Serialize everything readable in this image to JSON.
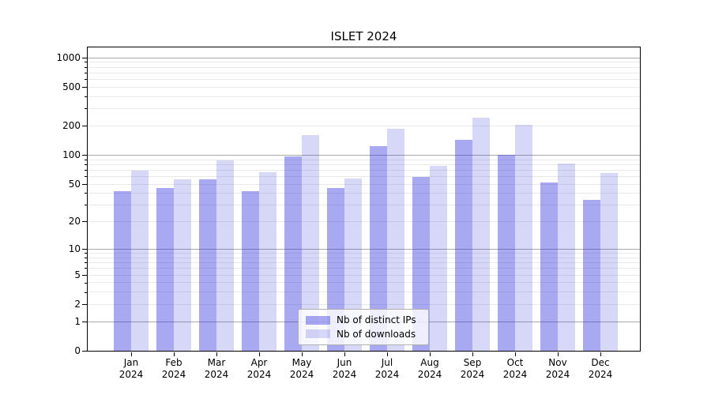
{
  "chart_data": {
    "type": "bar",
    "title": "ISLET 2024",
    "categories": [
      "Jan",
      "Feb",
      "Mar",
      "Apr",
      "May",
      "Jun",
      "Jul",
      "Aug",
      "Sep",
      "Oct",
      "Nov",
      "Dec"
    ],
    "year_label": "2024",
    "series": [
      {
        "name": "Nb of distinct IPs",
        "color": "rgba(40,40,220,0.40)",
        "values": [
          42,
          45,
          56,
          42,
          97,
          45,
          124,
          59,
          143,
          100,
          52,
          34
        ]
      },
      {
        "name": "Nb of downloads",
        "color": "rgba(40,40,220,0.19)",
        "values": [
          69,
          56,
          88,
          66,
          160,
          57,
          186,
          77,
          240,
          203,
          81,
          65
        ]
      }
    ],
    "y_ticks": [
      0,
      1,
      2,
      5,
      10,
      20,
      50,
      100,
      200,
      500,
      1000
    ],
    "y_scale": "log1p",
    "ylim": [
      0,
      1265
    ],
    "grid": {
      "major": [
        1,
        10,
        100,
        1000
      ],
      "major_color": "#a9a9a9",
      "minor_color": "#e9e9e9"
    },
    "legend": {
      "position": "lower center"
    },
    "axis_color": "#000000",
    "text_color": "#000000"
  }
}
